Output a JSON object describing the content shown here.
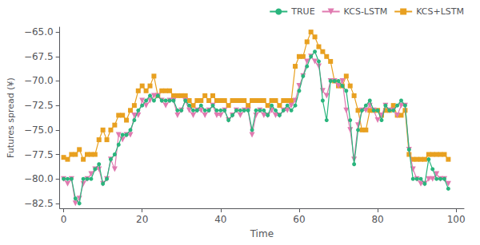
{
  "chart_data": {
    "type": "line",
    "x_label": "Time",
    "y_label": "Futures spread (¥)",
    "x": [
      0,
      1,
      2,
      3,
      4,
      5,
      6,
      7,
      8,
      9,
      10,
      11,
      12,
      13,
      14,
      15,
      16,
      17,
      18,
      19,
      20,
      21,
      22,
      23,
      24,
      25,
      26,
      27,
      28,
      29,
      30,
      31,
      32,
      33,
      34,
      35,
      36,
      37,
      38,
      39,
      40,
      41,
      42,
      43,
      44,
      45,
      46,
      47,
      48,
      49,
      50,
      51,
      52,
      53,
      54,
      55,
      56,
      57,
      58,
      59,
      60,
      61,
      62,
      63,
      64,
      65,
      66,
      67,
      68,
      69,
      70,
      71,
      72,
      73,
      74,
      75,
      76,
      77,
      78,
      79,
      80,
      81,
      82,
      83,
      84,
      85,
      86,
      87,
      88,
      89,
      90,
      91,
      92,
      93,
      94,
      95,
      96,
      97,
      98
    ],
    "series": [
      {
        "name": "TRUE",
        "color": "#2ab57d",
        "marker": "circle",
        "values": [
          -80,
          -80,
          -80,
          -82,
          -82.5,
          -80,
          -80,
          -80,
          -79,
          -78.5,
          -80.5,
          -80,
          -78,
          -77.5,
          -76.5,
          -75.5,
          -75.5,
          -75,
          -74,
          -73,
          -72.5,
          -72,
          -71.5,
          -72,
          -71.5,
          -72,
          -72,
          -72,
          -72,
          -73,
          -73,
          -72,
          -72.5,
          -73,
          -73,
          -72.5,
          -73,
          -73,
          -72.5,
          -73,
          -73,
          -73,
          -74,
          -73.5,
          -73,
          -73,
          -73,
          -73,
          -75,
          -73,
          -73,
          -73,
          -73.5,
          -72.5,
          -73,
          -73.5,
          -73,
          -72.5,
          -73,
          -72.5,
          -71,
          -69.5,
          -68.5,
          -67.5,
          -67,
          -68,
          -72,
          -74,
          -70,
          -70,
          -70,
          -70.5,
          -71,
          -74,
          -78.5,
          -75,
          -73,
          -72.5,
          -72,
          -73,
          -73,
          -74,
          -72.5,
          -73,
          -73,
          -72.5,
          -72,
          -72.5,
          -77,
          -80,
          -80,
          -80,
          -80.5,
          -78,
          -79,
          -80,
          -80,
          -80,
          -81
        ]
      },
      {
        "name": "KCS-LSTM",
        "color": "#e07ab0",
        "marker": "triangle_down",
        "values": [
          -80,
          -80.5,
          -80,
          -82.5,
          -82,
          -80.5,
          -80,
          -79.5,
          -79,
          -79,
          -80.5,
          -80,
          -78,
          -79,
          -75.5,
          -76,
          -75.5,
          -75.5,
          -73.5,
          -73.5,
          -72,
          -72.5,
          -72,
          -71.5,
          -71.5,
          -72,
          -72.5,
          -72,
          -72,
          -73.5,
          -73,
          -72,
          -73,
          -73.5,
          -73,
          -73,
          -73.5,
          -73,
          -72.5,
          -73.5,
          -73.5,
          -73,
          -74,
          -73.5,
          -73,
          -73.5,
          -73,
          -73,
          -75.5,
          -73.5,
          -73,
          -73.5,
          -73.5,
          -73,
          -73.5,
          -73.5,
          -73,
          -73,
          -72.5,
          -72,
          -70.5,
          -69.5,
          -68,
          -67.5,
          -68,
          -68.5,
          -71,
          -71.5,
          -70,
          -70,
          -70.5,
          -70,
          -73,
          -75,
          -78,
          -74.5,
          -73,
          -73,
          -72.5,
          -73,
          -74,
          -73.5,
          -72.5,
          -73,
          -73,
          -73.5,
          -72.5,
          -72.5,
          -77,
          -79,
          -80,
          -80.5,
          -80.5,
          -80,
          -80,
          -79.5,
          -80,
          -80,
          -80.5
        ]
      },
      {
        "name": "KCS+LSTM",
        "color": "#e8a020",
        "marker": "square",
        "values": [
          -77.8,
          -78,
          -77.5,
          -77.5,
          -77,
          -78,
          -77.5,
          -77.5,
          -77.5,
          -76,
          -75,
          -76,
          -75,
          -74.5,
          -73.5,
          -73.5,
          -74,
          -73,
          -72.5,
          -71,
          -70.5,
          -71,
          -70.5,
          -69.5,
          -71.5,
          -71,
          -71,
          -71,
          -71.5,
          -71.5,
          -71.5,
          -71.5,
          -72,
          -72.5,
          -72,
          -72,
          -71.5,
          -72,
          -71.5,
          -72,
          -72,
          -72,
          -72.5,
          -72,
          -72,
          -72,
          -72,
          -72.5,
          -72,
          -72,
          -72,
          -72,
          -72.5,
          -72,
          -72,
          -72.5,
          -72,
          -72,
          -72,
          -68.5,
          -67.5,
          -67.5,
          -66,
          -65,
          -65.5,
          -66.5,
          -67,
          -67.5,
          -68,
          -70,
          -70.5,
          -70.5,
          -69.5,
          -70.5,
          -71.5,
          -73,
          -75,
          -75,
          -73,
          -73,
          -73,
          -73.5,
          -73,
          -73,
          -72.5,
          -73.5,
          -73.5,
          -73,
          -77.5,
          -78,
          -78,
          -78,
          -78,
          -77.5,
          -77.5,
          -77.5,
          -77.5,
          -77.5,
          -78
        ]
      }
    ],
    "xlim": [
      -1,
      102
    ],
    "xticks": [
      0,
      20,
      40,
      60,
      80,
      100
    ],
    "ylim": [
      -83,
      -64.5
    ],
    "yticks": [
      {
        "value": -82.5,
        "label": "−82.5"
      },
      {
        "value": -80,
        "label": "−80.0"
      },
      {
        "value": -77.5,
        "label": "−77.5"
      },
      {
        "value": -75,
        "label": "−75.0"
      },
      {
        "value": -72.5,
        "label": "−72.5"
      },
      {
        "value": -70,
        "label": "−70.0"
      },
      {
        "value": -67.5,
        "label": "−67.5"
      },
      {
        "value": -65,
        "label": "−65.0"
      }
    ],
    "legend": "upper right",
    "grid": false
  }
}
